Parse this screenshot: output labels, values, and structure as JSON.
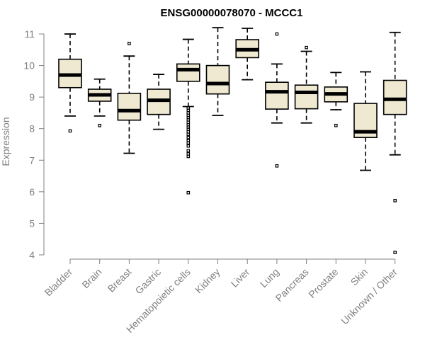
{
  "chart_data": {
    "type": "boxplot",
    "title": "ENSG00000078070 - MCCC1",
    "xlabel": "",
    "ylabel": "Expression",
    "ylim": [
      4,
      11
    ],
    "yticks": [
      4,
      5,
      6,
      7,
      8,
      9,
      10,
      11
    ],
    "grid": false,
    "legend": "none",
    "colors": {
      "box_fill": "#efe9d1",
      "stroke": "#000000",
      "axis": "#808080"
    },
    "categories": [
      "Bladder",
      "Brain",
      "Breast",
      "Gastric",
      "Hematopoietic cells",
      "Kidney",
      "Liver",
      "Lung",
      "Pancreas",
      "Prostate",
      "Skin",
      "Unknown / Other"
    ],
    "boxes": [
      {
        "name": "Bladder",
        "min": 8.4,
        "q1": 9.3,
        "median": 9.7,
        "q3": 10.2,
        "max": 11.0,
        "outliers": [
          7.93
        ]
      },
      {
        "name": "Brain",
        "min": 8.4,
        "q1": 8.87,
        "median": 9.07,
        "q3": 9.25,
        "max": 9.57,
        "outliers": [
          8.1
        ]
      },
      {
        "name": "Breast",
        "min": 7.22,
        "q1": 8.27,
        "median": 8.57,
        "q3": 9.12,
        "max": 10.3,
        "outliers": [
          10.7
        ]
      },
      {
        "name": "Gastric",
        "min": 7.98,
        "q1": 8.45,
        "median": 8.9,
        "q3": 9.25,
        "max": 9.72,
        "outliers": []
      },
      {
        "name": "Hematopoietic cells",
        "min": 8.7,
        "q1": 9.5,
        "median": 9.87,
        "q3": 10.05,
        "max": 10.83,
        "outliers": [
          8.65,
          8.58,
          8.5,
          8.42,
          8.35,
          8.28,
          8.2,
          8.12,
          8.05,
          7.98,
          7.9,
          7.82,
          7.72,
          7.62,
          7.55,
          7.45,
          7.3,
          7.2,
          7.12,
          5.97
        ]
      },
      {
        "name": "Kidney",
        "min": 8.42,
        "q1": 9.1,
        "median": 9.43,
        "q3": 10.0,
        "max": 11.2,
        "outliers": []
      },
      {
        "name": "Liver",
        "min": 9.55,
        "q1": 10.25,
        "median": 10.5,
        "q3": 10.82,
        "max": 11.18,
        "outliers": []
      },
      {
        "name": "Lung",
        "min": 8.18,
        "q1": 8.62,
        "median": 9.17,
        "q3": 9.47,
        "max": 10.05,
        "outliers": [
          11.0,
          6.82
        ]
      },
      {
        "name": "Pancreas",
        "min": 8.18,
        "q1": 8.63,
        "median": 9.15,
        "q3": 9.38,
        "max": 10.45,
        "outliers": [
          10.57
        ]
      },
      {
        "name": "Prostate",
        "min": 8.6,
        "q1": 8.85,
        "median": 9.1,
        "q3": 9.32,
        "max": 9.78,
        "outliers": [
          8.1
        ]
      },
      {
        "name": "Skin",
        "min": 6.68,
        "q1": 7.72,
        "median": 7.9,
        "q3": 8.8,
        "max": 9.8,
        "outliers": []
      },
      {
        "name": "Unknown / Other",
        "min": 7.17,
        "q1": 8.45,
        "median": 8.93,
        "q3": 9.53,
        "max": 11.05,
        "outliers": [
          5.72,
          4.08
        ]
      }
    ]
  }
}
